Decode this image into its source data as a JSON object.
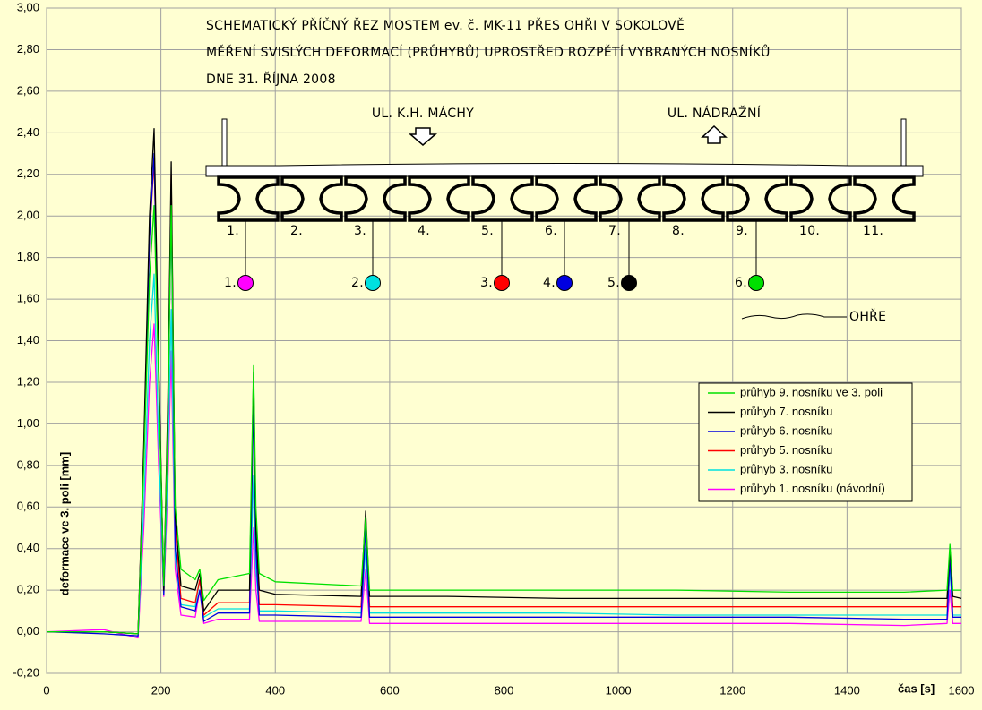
{
  "chart_data": {
    "type": "line",
    "xlabel": "čas [s]",
    "ylabel": "deformace ve 3. poli  [mm]",
    "xlim": [
      0,
      1600
    ],
    "ylim": [
      -0.2,
      3.0
    ],
    "xticks": [
      0,
      200,
      400,
      600,
      800,
      1000,
      1200,
      1400,
      1600
    ],
    "yticks": [
      {
        "value": -0.2,
        "label": "-0,20"
      },
      {
        "value": 0,
        "label": "0,00"
      },
      {
        "value": 0.2,
        "label": "0,20"
      },
      {
        "value": 0.4,
        "label": "0,40"
      },
      {
        "value": 0.6,
        "label": "0,60"
      },
      {
        "value": 0.8,
        "label": "0,80"
      },
      {
        "value": 1.0,
        "label": "1,00"
      },
      {
        "value": 1.2,
        "label": "1,20"
      },
      {
        "value": 1.4,
        "label": "1,40"
      },
      {
        "value": 1.6,
        "label": "1,60"
      },
      {
        "value": 1.8,
        "label": "1,80"
      },
      {
        "value": 2.0,
        "label": "2,00"
      },
      {
        "value": 2.2,
        "label": "2,20"
      },
      {
        "value": 2.4,
        "label": "2,40"
      },
      {
        "value": 2.6,
        "label": "2,60"
      },
      {
        "value": 2.8,
        "label": "2,80"
      },
      {
        "value": 3.0,
        "label": "3,00"
      }
    ],
    "grid": true,
    "legend": "right",
    "x": [
      0,
      100,
      160,
      170,
      180,
      188,
      196,
      205,
      212,
      218,
      225,
      235,
      260,
      268,
      275,
      300,
      355,
      362,
      366,
      372,
      400,
      550,
      558,
      565,
      700,
      900,
      1100,
      1300,
      1500,
      1575,
      1580,
      1585,
      1600
    ],
    "series": [
      {
        "name": "průhyb 9. nosníku ve 3. poli",
        "color": "#00e000",
        "values": [
          0,
          0,
          -0.01,
          0.8,
          1.7,
          2.05,
          1.2,
          0.22,
          1.0,
          2.05,
          0.6,
          0.3,
          0.25,
          0.3,
          0.15,
          0.25,
          0.28,
          1.28,
          0.6,
          0.28,
          0.24,
          0.22,
          0.55,
          0.2,
          0.2,
          0.2,
          0.2,
          0.19,
          0.19,
          0.2,
          0.42,
          0.2,
          0.2
        ]
      },
      {
        "name": "průhyb 7. nosníku",
        "color": "#000000",
        "values": [
          0,
          0,
          -0.01,
          0.9,
          2.0,
          2.42,
          1.3,
          0.2,
          1.1,
          2.26,
          0.55,
          0.22,
          0.2,
          0.28,
          0.1,
          0.2,
          0.2,
          1.25,
          0.5,
          0.2,
          0.18,
          0.17,
          0.58,
          0.17,
          0.17,
          0.16,
          0.16,
          0.16,
          0.16,
          0.16,
          0.4,
          0.17,
          0.16
        ]
      },
      {
        "name": "průhyb 6. nosníku",
        "color": "#0000e0",
        "values": [
          0,
          -0.01,
          -0.02,
          0.85,
          1.9,
          2.3,
          1.25,
          0.18,
          1.0,
          2.05,
          0.4,
          0.12,
          0.1,
          0.2,
          0.05,
          0.09,
          0.09,
          1.1,
          0.4,
          0.08,
          0.08,
          0.07,
          0.5,
          0.07,
          0.07,
          0.07,
          0.07,
          0.07,
          0.06,
          0.06,
          0.35,
          0.07,
          0.07
        ]
      },
      {
        "name": "průhyb 5. nosníku",
        "color": "#ff0000",
        "values": [
          0,
          0,
          -0.01,
          0.85,
          1.9,
          2.27,
          1.25,
          0.2,
          1.0,
          2.2,
          0.5,
          0.16,
          0.14,
          0.25,
          0.08,
          0.14,
          0.14,
          1.2,
          0.45,
          0.13,
          0.13,
          0.12,
          0.55,
          0.12,
          0.12,
          0.12,
          0.12,
          0.12,
          0.12,
          0.12,
          0.38,
          0.12,
          0.12
        ]
      },
      {
        "name": "průhyb 3. nosníku",
        "color": "#00e0e0",
        "values": [
          0,
          0,
          -0.01,
          0.6,
          1.4,
          1.72,
          0.9,
          0.18,
          0.8,
          1.55,
          0.35,
          0.13,
          0.12,
          0.25,
          0.07,
          0.11,
          0.11,
          0.75,
          0.3,
          0.1,
          0.1,
          0.09,
          0.4,
          0.09,
          0.09,
          0.09,
          0.08,
          0.08,
          0.08,
          0.08,
          0.3,
          0.08,
          0.08
        ]
      },
      {
        "name": "průhyb 1. nosníku (návodní)",
        "color": "#ff00ff",
        "values": [
          0,
          0.01,
          -0.03,
          0.5,
          1.2,
          1.48,
          0.8,
          0.17,
          0.7,
          1.35,
          0.3,
          0.08,
          0.07,
          0.2,
          0.04,
          0.06,
          0.06,
          0.5,
          0.2,
          0.05,
          0.05,
          0.05,
          0.3,
          0.04,
          0.04,
          0.04,
          0.04,
          0.04,
          0.03,
          0.04,
          0.2,
          0.04,
          0.04
        ]
      }
    ],
    "annotations": {
      "title_lines": [
        "SCHEMATICKÝ PŘÍČNÝ ŘEZ MOSTEM ev. č. MK-11 PŘES OHŘI V SOKOLOVĚ",
        "MĚŘENÍ SVISLÝCH DEFORMACÍ (PRŮHYBŮ) UPROSTŘED ROZPĚTÍ VYBRANÝCH NOSNÍKŮ",
        "DNE 31. ŘÍJNA 2008"
      ],
      "streets": [
        "UL. K.H. MÁCHY",
        "UL. NÁDRAŽNÍ"
      ],
      "beam_numbers": [
        "1.",
        "2.",
        "3.",
        "4.",
        "5.",
        "6.",
        "7.",
        "8.",
        "9.",
        "10.",
        "11."
      ],
      "sensors": [
        {
          "label": "1.",
          "color": "#ff00ff"
        },
        {
          "label": "2.",
          "color": "#00e0e0"
        },
        {
          "label": "3.",
          "color": "#ff0000"
        },
        {
          "label": "4.",
          "color": "#0000e0"
        },
        {
          "label": "5.",
          "color": "#000000"
        },
        {
          "label": "6.",
          "color": "#00e000"
        }
      ],
      "river": "OHŘE"
    }
  }
}
